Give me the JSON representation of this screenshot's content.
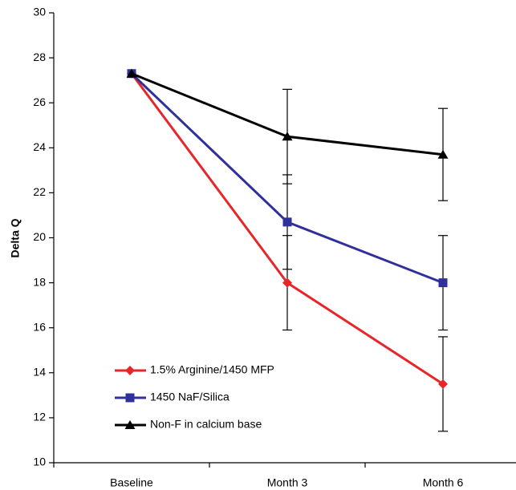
{
  "chart_data": {
    "type": "line",
    "y_label": "Delta Q",
    "categories": [
      "Baseline",
      "Month 3",
      "Month 6"
    ],
    "series": [
      {
        "name": "1.5% Arginine/1450 MFP",
        "color": "#e8262a",
        "marker": "diamond",
        "values": [
          27.3,
          18.0,
          13.5
        ],
        "errors": [
          null,
          2.1,
          2.1
        ]
      },
      {
        "name": "1450 NaF/Silica",
        "color": "#30309a",
        "marker": "square",
        "values": [
          27.3,
          20.7,
          18.0
        ],
        "errors": [
          null,
          2.1,
          2.1
        ]
      },
      {
        "name": "Non-F in calcium base",
        "color": "#000000",
        "marker": "triangle",
        "values": [
          27.3,
          24.5,
          23.7
        ],
        "errors": [
          null,
          2.1,
          2.05
        ]
      }
    ],
    "ylim": [
      10,
      30
    ],
    "yticks": [
      10,
      12,
      14,
      16,
      18,
      20,
      22,
      24,
      26,
      28,
      30
    ],
    "legend": "lower-left",
    "grid": false
  }
}
